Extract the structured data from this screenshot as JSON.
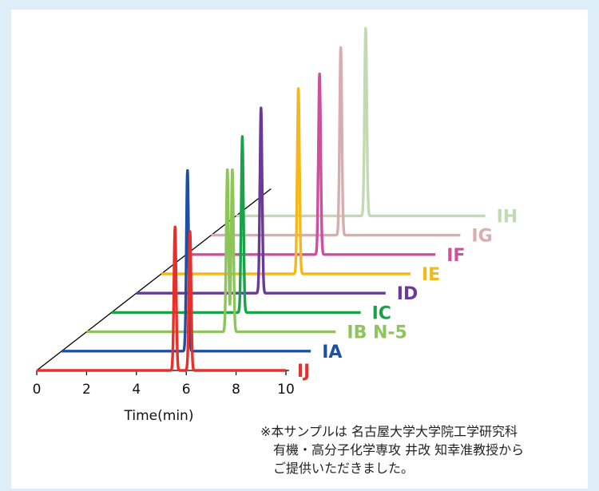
{
  "chart_data": {
    "type": "line",
    "subtype": "stacked-3d-chromatogram",
    "xlabel": "Time(min)",
    "xlim": [
      0,
      10
    ],
    "x_ticks": [
      0,
      2,
      4,
      6,
      8,
      10
    ],
    "x_tick_labels": [
      "0",
      "2",
      "4",
      "6",
      "8",
      "10"
    ],
    "depth_offset_per_series_min": 1,
    "grid": false,
    "legend": "labels at right end of each trace",
    "series": [
      {
        "name": "IJ",
        "color": "#e8302a",
        "peaks": [
          {
            "t": 5.55,
            "h": 0.62
          },
          {
            "t": 6.15,
            "h": 0.6
          }
        ]
      },
      {
        "name": "IA",
        "color": "#1f4fa0",
        "peaks": [
          {
            "t": 6.05,
            "h": 0.78
          }
        ]
      },
      {
        "name": "IB N-5",
        "color": "#8dc55a",
        "peaks": [
          {
            "t": 7.65,
            "h": 0.7
          },
          {
            "t": 7.85,
            "h": 0.7
          }
        ]
      },
      {
        "name": "IC",
        "color": "#1aa24a",
        "peaks": [
          {
            "t": 8.25,
            "h": 0.76
          }
        ]
      },
      {
        "name": "ID",
        "color": "#6b3a98",
        "peaks": [
          {
            "t": 9.0,
            "h": 0.8
          }
        ]
      },
      {
        "name": "IE",
        "color": "#f4b81c",
        "peaks": [
          {
            "t": 10.5,
            "h": 0.8
          }
        ]
      },
      {
        "name": "IF",
        "color": "#cf4e9d",
        "peaks": [
          {
            "t": 11.35,
            "h": 0.78
          }
        ]
      },
      {
        "name": "IG",
        "color": "#d8adb0",
        "peaks": [
          {
            "t": 12.2,
            "h": 0.81
          }
        ]
      },
      {
        "name": "IH",
        "color": "#c3d9b1",
        "peaks": [
          {
            "t": 13.2,
            "h": 0.81
          }
        ]
      }
    ]
  },
  "note": {
    "line1": "※本サンプルは 名古屋大学大学院工学研究科",
    "line2": "有機・高分子化学専攻 井改 知幸准教授から",
    "line3": "ご提供いただきました。"
  }
}
